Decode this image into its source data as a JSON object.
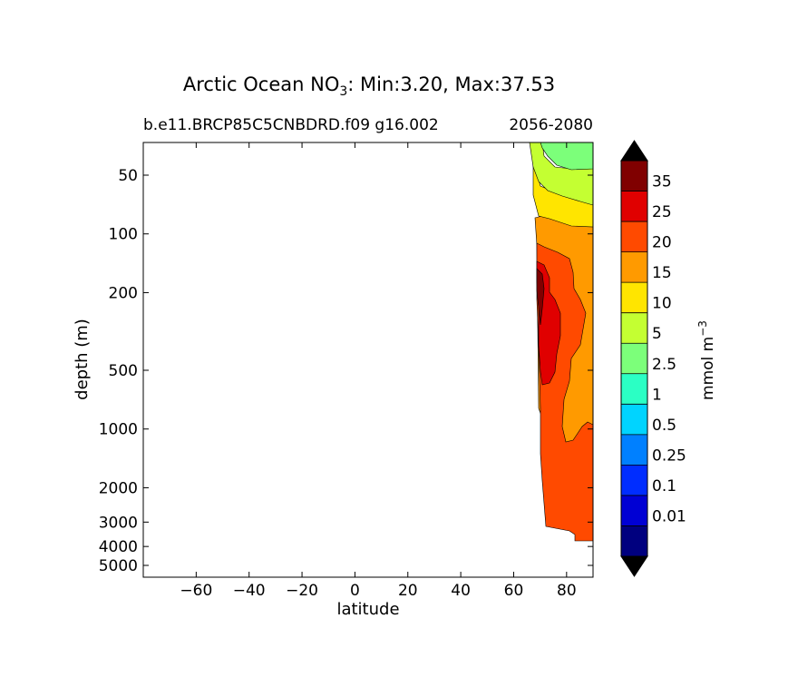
{
  "chart_data": {
    "type": "contour",
    "title_prefix": "Arctic Ocean NO",
    "title_sub": "3",
    "title_suffix": ": Min:3.20, Max:37.53",
    "subtitle_left": "b.e11.BRCP85C5CNBDRD.f09 g16.002",
    "subtitle_right": "2056-2080",
    "xlabel": "latitude",
    "ylabel": "depth (m)",
    "xlim": [
      -80,
      90
    ],
    "x_ticks": [
      -60,
      -40,
      -20,
      0,
      20,
      40,
      60,
      80
    ],
    "x_tick_labels": [
      "−60",
      "−40",
      "−20",
      "0",
      "20",
      "40",
      "60",
      "80"
    ],
    "y_ticks": [
      50,
      100,
      200,
      500,
      1000,
      2000,
      3000,
      4000,
      5000
    ],
    "y_tick_labels": [
      "50",
      "100",
      "200",
      "500",
      "1000",
      "2000",
      "3000",
      "4000",
      "5000"
    ],
    "colorbar": {
      "label_main": "mmol m",
      "label_sup": "−3",
      "levels": [
        "0.01",
        "0.1",
        "0.25",
        "0.5",
        "1",
        "2.5",
        "5",
        "10",
        "15",
        "20",
        "25",
        "35"
      ],
      "colors": [
        "#00007f",
        "#0000d4",
        "#002dff",
        "#0080ff",
        "#00d4ff",
        "#2bffc4",
        "#7cff7a",
        "#c4ff32",
        "#ffe500",
        "#ff9a00",
        "#ff4a00",
        "#e00000",
        "#800000"
      ],
      "extend_low_color": "#000000",
      "extend_high_color": "#000000"
    },
    "regions": [
      {
        "band": "15-20",
        "color": "#ff9a00",
        "lat_range": [
          67,
          90
        ],
        "depth_range": [
          115,
          1300
        ]
      },
      {
        "band": "20-25",
        "color": "#ff4a00",
        "lat_range": [
          68,
          90
        ],
        "depth_range": [
          140,
          4200
        ]
      },
      {
        "band": "25-35",
        "color": "#e00000",
        "lat_range": [
          69,
          77
        ],
        "depth_range": [
          180,
          560
        ]
      },
      {
        "band": "35+",
        "color": "#800000",
        "lat_range": [
          69,
          71
        ],
        "depth_range": [
          185,
          320
        ]
      },
      {
        "band": "10-15",
        "color": "#ffe500",
        "lat_range": [
          67,
          90
        ],
        "depth_range": [
          55,
          130
        ]
      },
      {
        "band": "5-10",
        "color": "#c4ff32",
        "lat_range": [
          66,
          90
        ],
        "depth_range": [
          25,
          85
        ]
      },
      {
        "band": "2.5-5",
        "color": "#7cff7a",
        "lat_range": [
          70,
          90
        ],
        "depth_range": [
          25,
          45
        ]
      }
    ]
  }
}
